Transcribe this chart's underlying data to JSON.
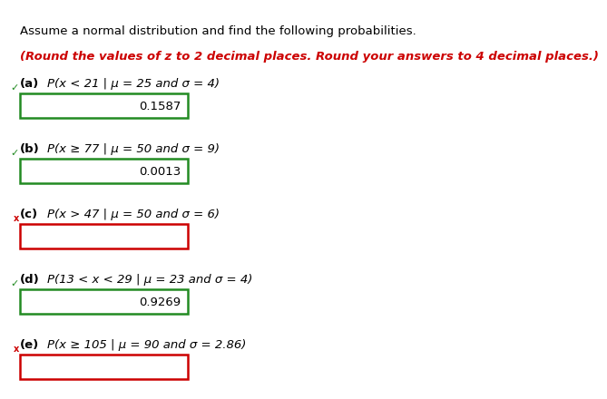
{
  "title_line": "Assume a normal distribution and find the following probabilities.",
  "subtitle": "(Round the values of z to 2 decimal places. Round your answers to 4 decimal places.)",
  "subtitle_color": "#CC0000",
  "items": [
    {
      "label": "(a)",
      "condition": "P(x < 21 | μ = 25 and σ = 4)",
      "value": "0.1587",
      "box_color": "#228B22",
      "check": true,
      "empty": false
    },
    {
      "label": "(b)",
      "condition": "P(x ≥ 77 | μ = 50 and σ = 9)",
      "value": "0.0013",
      "box_color": "#228B22",
      "check": true,
      "empty": false
    },
    {
      "label": "(c)",
      "condition": "P(x > 47 | μ = 50 and σ = 6)",
      "value": "",
      "box_color": "#CC0000",
      "check": false,
      "empty": true
    },
    {
      "label": "(d)",
      "condition": "P(13 < x < 29 | μ = 23 and σ = 4)",
      "value": "0.9269",
      "box_color": "#228B22",
      "check": true,
      "empty": false
    },
    {
      "label": "(e)",
      "condition": "P(x ≥ 105 | μ = 90 and σ = 2.86)",
      "value": "",
      "box_color": "#CC0000",
      "check": false,
      "empty": true
    }
  ],
  "bg_color": "#ffffff",
  "text_color": "#000000",
  "check_color": "#228B22",
  "x_color": "#CC0000",
  "title_fontsize": 9.5,
  "subtitle_fontsize": 9.5,
  "label_fontsize": 9.5,
  "cond_fontsize": 9.5,
  "value_fontsize": 9.5
}
